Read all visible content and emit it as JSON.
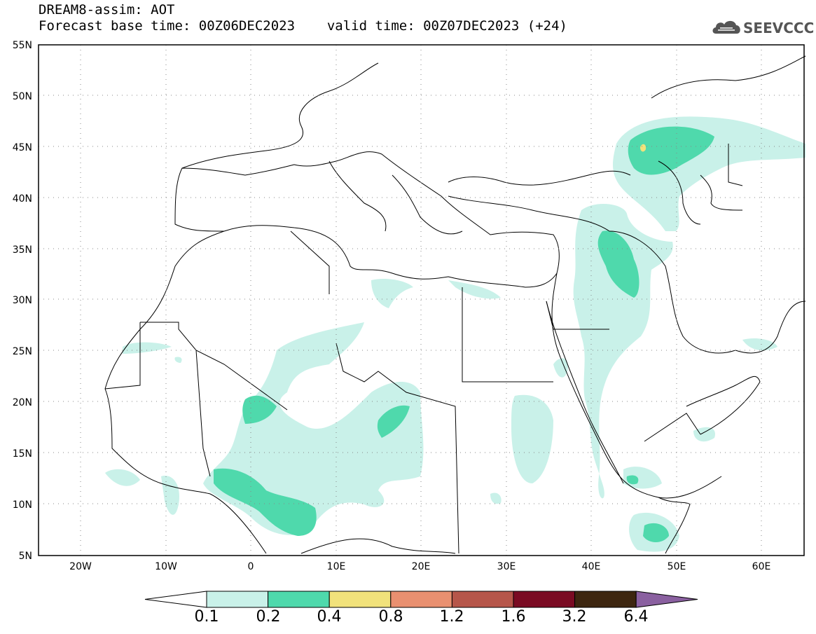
{
  "header": {
    "title": "DREAM8-assim: AOT",
    "base_time_label": "Forecast base time: 00Z06DEC2023",
    "valid_time_label": "valid time: 00Z07DEC2023 (+24)"
  },
  "logo": {
    "text": "SEEVCCC",
    "icon": "cloud-icon"
  },
  "map": {
    "lon_range": [
      -25,
      65
    ],
    "lat_range": [
      5,
      55
    ],
    "lat_ticks": [
      "5N",
      "10N",
      "15N",
      "20N",
      "25N",
      "30N",
      "35N",
      "40N",
      "45N",
      "50N",
      "55N"
    ],
    "lon_ticks": [
      "20W",
      "10W",
      "0",
      "10E",
      "20E",
      "30E",
      "40E",
      "50E",
      "60E"
    ],
    "grid": true
  },
  "colorbar": {
    "levels": [
      "0.1",
      "0.2",
      "0.4",
      "0.8",
      "1.2",
      "1.6",
      "3.2",
      "6.4"
    ],
    "colors": [
      "#ffffff",
      "#c9f1e9",
      "#4fd9ac",
      "#f1e27b",
      "#e99070",
      "#b6564a",
      "#7a0b23",
      "#3d2610",
      "#8a60a0"
    ]
  }
}
